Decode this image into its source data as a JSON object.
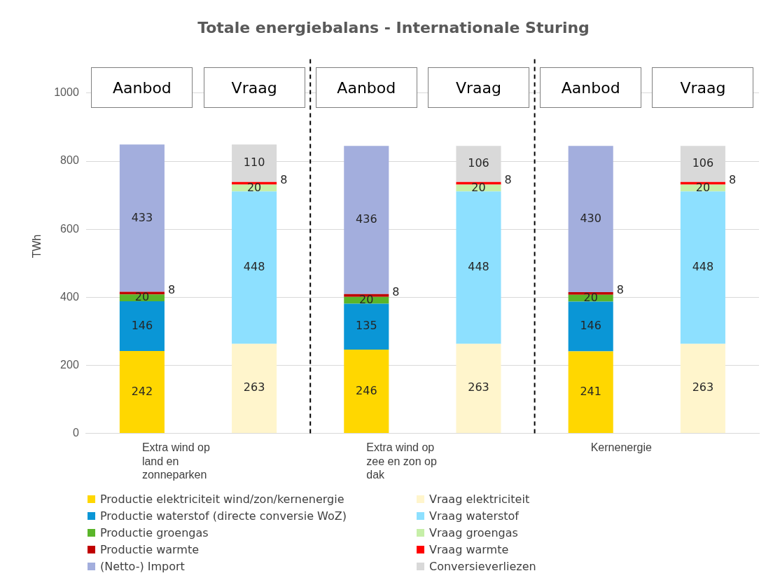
{
  "chart_data": {
    "type": "bar",
    "stacked": true,
    "title": "Totale energiebalans - Internationale Sturing",
    "ylabel": "TWh",
    "categories": [
      "Extra wind op land en zonneparken",
      null,
      "Extra wind op zee en zon op dak",
      null,
      "Kernenergie",
      null
    ],
    "series": [
      {
        "name": "Productie elektriciteit wind/zon/kernenergie",
        "color": "#ffd700",
        "values": [
          242,
          null,
          246,
          null,
          241,
          null
        ]
      },
      {
        "name": "Productie waterstof (directe conversie WoZ)",
        "color": "#0a96d6",
        "values": [
          146,
          null,
          135,
          null,
          146,
          null
        ]
      },
      {
        "name": "Productie groengas",
        "color": "#5ab52a",
        "values": [
          20,
          null,
          20,
          null,
          20,
          null
        ]
      },
      {
        "name": "Productie warmte",
        "color": "#c00000",
        "values": [
          8,
          null,
          8,
          null,
          8,
          null
        ]
      },
      {
        "name": "(Netto-) Import",
        "color": "#a3aedd",
        "values": [
          433,
          null,
          436,
          null,
          430,
          null
        ]
      },
      {
        "name": "Vraag elektriciteit",
        "color": "#fff5cc",
        "values": [
          null,
          263,
          null,
          263,
          null,
          263
        ]
      },
      {
        "name": "Vraag waterstof",
        "color": "#8de0ff",
        "values": [
          null,
          448,
          null,
          448,
          null,
          448
        ]
      },
      {
        "name": "Vraag groengas",
        "color": "#c6efa8",
        "values": [
          null,
          20,
          null,
          20,
          null,
          20
        ]
      },
      {
        "name": "Vraag warmte",
        "color": "#ff0000",
        "values": [
          null,
          8,
          null,
          8,
          null,
          8
        ]
      },
      {
        "name": "Conversieverliezen",
        "color": "#d9d9d9",
        "values": [
          null,
          110,
          null,
          106,
          null,
          106
        ]
      }
    ],
    "ylim": [
      0,
      1100
    ],
    "yticks": [
      0,
      200,
      400,
      600,
      800,
      1000
    ],
    "grid": "y",
    "legend": "bottom",
    "data_labels": true,
    "annotations": [
      "Aanbod",
      "Vraag",
      "Aanbod",
      "Vraag",
      "Aanbod",
      "Vraag"
    ]
  }
}
